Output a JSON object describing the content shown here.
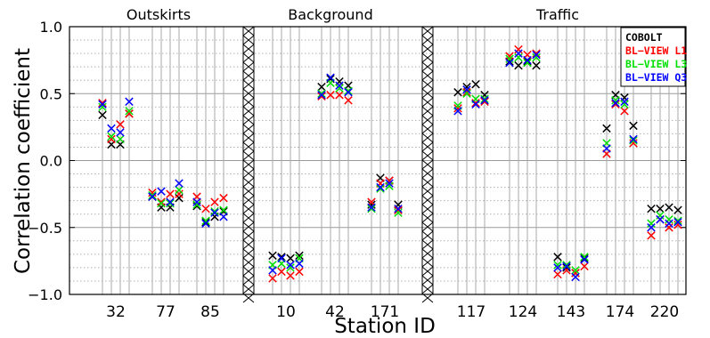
{
  "chart_data": {
    "type": "scatter",
    "xlabel": "Station ID",
    "ylabel": "Correlation coefficient",
    "ylim": [
      -1.0,
      1.0
    ],
    "yticks": [
      -1.0,
      -0.5,
      0.0,
      0.5,
      1.0
    ],
    "ytick_labels": [
      "−1.0",
      "−0.5",
      "0.0",
      "0.5",
      "1.0"
    ],
    "grid": true,
    "legend_position": "top-right",
    "panels": [
      {
        "title": "Outskirts",
        "stations": [
          "32",
          "77",
          "85"
        ]
      },
      {
        "title": "Background",
        "stations": [
          "10",
          "42",
          "171"
        ]
      },
      {
        "title": "Traffic",
        "stations": [
          "117",
          "124",
          "143",
          "174",
          "220"
        ]
      }
    ],
    "series": [
      {
        "name": "COBOLT",
        "color": "#000000"
      },
      {
        "name": "BL−VIEW L1",
        "color": "#ff0000"
      },
      {
        "name": "BL−VIEW L3",
        "color": "#00e000"
      },
      {
        "name": "BL−VIEW Q3",
        "color": "#0000ff"
      }
    ],
    "points": [
      {
        "station": "32",
        "values": [
          [
            0.34,
            0.43,
            0.4,
            0.42
          ],
          [
            0.12,
            0.16,
            0.18,
            0.24
          ],
          [
            0.12,
            0.27,
            0.16,
            0.21
          ],
          [
            0.35,
            0.35,
            0.37,
            0.44
          ]
        ]
      },
      {
        "station": "77",
        "values": [
          [
            -0.27,
            -0.24,
            -0.26,
            -0.27
          ],
          [
            -0.35,
            -0.31,
            -0.32,
            -0.23
          ],
          [
            -0.35,
            -0.25,
            -0.32,
            -0.31
          ],
          [
            -0.28,
            -0.25,
            -0.22,
            -0.17
          ]
        ]
      },
      {
        "station": "85",
        "values": [
          [
            -0.34,
            -0.27,
            -0.33,
            -0.31
          ],
          [
            -0.46,
            -0.36,
            -0.45,
            -0.47
          ],
          [
            -0.42,
            -0.31,
            -0.38,
            -0.39
          ],
          [
            -0.38,
            -0.28,
            -0.37,
            -0.42
          ]
        ]
      },
      {
        "station": "10",
        "values": [
          [
            -0.71,
            -0.88,
            -0.78,
            -0.82
          ],
          [
            -0.72,
            -0.83,
            -0.77,
            -0.73
          ],
          [
            -0.73,
            -0.86,
            -0.8,
            -0.78
          ],
          [
            -0.71,
            -0.83,
            -0.73,
            -0.77
          ]
        ]
      },
      {
        "station": "42",
        "values": [
          [
            0.55,
            0.48,
            0.5,
            0.49
          ],
          [
            0.61,
            0.49,
            0.58,
            0.62
          ],
          [
            0.59,
            0.49,
            0.54,
            0.56
          ],
          [
            0.56,
            0.45,
            0.52,
            0.51
          ]
        ]
      },
      {
        "station": "171",
        "values": [
          [
            -0.33,
            -0.31,
            -0.36,
            -0.35
          ],
          [
            -0.13,
            -0.17,
            -0.21,
            -0.2
          ],
          [
            -0.15,
            -0.15,
            -0.19,
            -0.17
          ],
          [
            -0.33,
            -0.37,
            -0.39,
            -0.36
          ]
        ]
      },
      {
        "station": "117",
        "values": [
          [
            0.51,
            0.39,
            0.41,
            0.37
          ],
          [
            0.55,
            0.51,
            0.5,
            0.53
          ],
          [
            0.57,
            0.43,
            0.46,
            0.42
          ],
          [
            0.49,
            0.44,
            0.46,
            0.45
          ]
        ]
      },
      {
        "station": "124",
        "values": [
          [
            0.74,
            0.78,
            0.76,
            0.73
          ],
          [
            0.71,
            0.83,
            0.77,
            0.8
          ],
          [
            0.74,
            0.79,
            0.73,
            0.75
          ],
          [
            0.71,
            0.8,
            0.77,
            0.79
          ]
        ]
      },
      {
        "station": "143",
        "values": [
          [
            -0.72,
            -0.85,
            -0.78,
            -0.8
          ],
          [
            -0.8,
            -0.82,
            -0.78,
            -0.79
          ],
          [
            -0.84,
            -0.84,
            -0.82,
            -0.87
          ],
          [
            -0.73,
            -0.79,
            -0.72,
            -0.74
          ]
        ]
      },
      {
        "station": "174",
        "values": [
          [
            0.24,
            0.05,
            0.13,
            0.09
          ],
          [
            0.49,
            0.42,
            0.45,
            0.43
          ],
          [
            0.47,
            0.37,
            0.42,
            0.44
          ],
          [
            0.26,
            0.13,
            0.15,
            0.16
          ]
        ]
      },
      {
        "station": "220",
        "values": [
          [
            -0.36,
            -0.56,
            -0.47,
            -0.5
          ],
          [
            -0.36,
            -0.44,
            -0.41,
            -0.44
          ],
          [
            -0.35,
            -0.5,
            -0.44,
            -0.47
          ],
          [
            -0.37,
            -0.48,
            -0.45,
            -0.46
          ]
        ]
      }
    ]
  }
}
